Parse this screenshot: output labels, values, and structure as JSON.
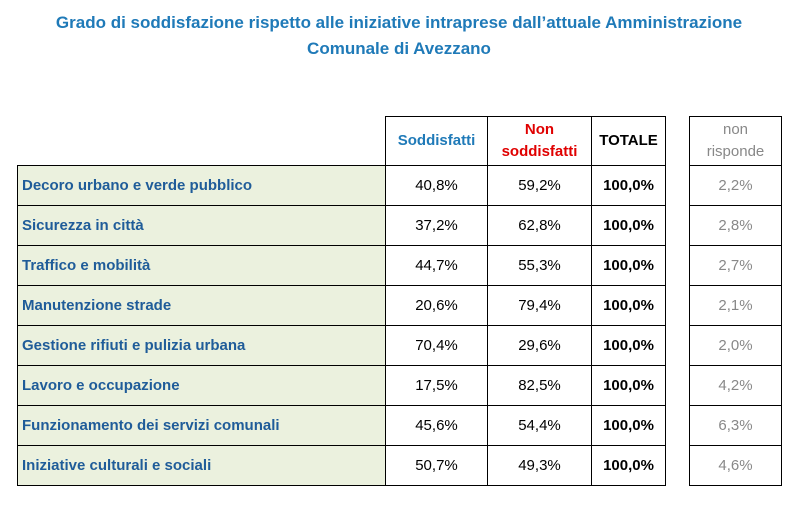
{
  "title": {
    "line1": "Grado di soddisfazione rispetto alle iniziative intraprese dall’attuale Amministrazione",
    "line2": "Comunale di Avezzano"
  },
  "headers": {
    "soddisfatti": "Soddisfatti",
    "non_soddisfatti_1": "Non",
    "non_soddisfatti_2": "soddisfatti",
    "totale": "TOTALE",
    "non_risponde_1": "non",
    "non_risponde_2": "risponde"
  },
  "rows": [
    {
      "label": "Decoro urbano e verde pubblico",
      "soddisfatti": "40,8%",
      "non_soddisfatti": "59,2%",
      "totale": "100,0%",
      "non_risponde": "2,2%"
    },
    {
      "label": "Sicurezza in città",
      "soddisfatti": "37,2%",
      "non_soddisfatti": "62,8%",
      "totale": "100,0%",
      "non_risponde": "2,8%"
    },
    {
      "label": "Traffico e mobilità",
      "soddisfatti": "44,7%",
      "non_soddisfatti": "55,3%",
      "totale": "100,0%",
      "non_risponde": "2,7%"
    },
    {
      "label": "Manutenzione strade",
      "soddisfatti": "20,6%",
      "non_soddisfatti": "79,4%",
      "totale": "100,0%",
      "non_risponde": "2,1%"
    },
    {
      "label": "Gestione rifiuti e pulizia urbana",
      "soddisfatti": "70,4%",
      "non_soddisfatti": "29,6%",
      "totale": "100,0%",
      "non_risponde": "2,0%"
    },
    {
      "label": "Lavoro e occupazione",
      "soddisfatti": "17,5%",
      "non_soddisfatti": "82,5%",
      "totale": "100,0%",
      "non_risponde": "4,2%"
    },
    {
      "label": "Funzionamento dei servizi comunali",
      "soddisfatti": "45,6%",
      "non_soddisfatti": "54,4%",
      "totale": "100,0%",
      "non_risponde": "6,3%"
    },
    {
      "label": "Iniziative culturali e sociali",
      "soddisfatti": "50,7%",
      "non_soddisfatti": "49,3%",
      "totale": "100,0%",
      "non_risponde": "4,6%"
    }
  ],
  "colors": {
    "title": "#1f7ab8",
    "soddisfatti_header": "#1f7ab8",
    "non_soddisfatti_header": "#e00000",
    "label_background": "#ebf1de",
    "label_text": "#1f5c99",
    "non_risponde_text": "#888888"
  },
  "chart_data": {
    "type": "table",
    "title": "Grado di soddisfazione rispetto alle iniziative intraprese dall’attuale Amministrazione Comunale di Avezzano",
    "columns": [
      "Soddisfatti",
      "Non soddisfatti",
      "TOTALE",
      "non risponde"
    ],
    "categories": [
      "Decoro urbano e verde pubblico",
      "Sicurezza in città",
      "Traffico e mobilità",
      "Manutenzione strade",
      "Gestione rifiuti e pulizia urbana",
      "Lavoro e occupazione",
      "Funzionamento dei servizi comunali",
      "Iniziative culturali e sociali"
    ],
    "series": [
      {
        "name": "Soddisfatti",
        "values": [
          40.8,
          37.2,
          44.7,
          20.6,
          70.4,
          17.5,
          45.6,
          50.7
        ]
      },
      {
        "name": "Non soddisfatti",
        "values": [
          59.2,
          62.8,
          55.3,
          79.4,
          29.6,
          82.5,
          54.4,
          49.3
        ]
      },
      {
        "name": "TOTALE",
        "values": [
          100.0,
          100.0,
          100.0,
          100.0,
          100.0,
          100.0,
          100.0,
          100.0
        ]
      },
      {
        "name": "non risponde",
        "values": [
          2.2,
          2.8,
          2.7,
          2.1,
          2.0,
          4.2,
          6.3,
          4.6
        ]
      }
    ],
    "units": "%"
  }
}
